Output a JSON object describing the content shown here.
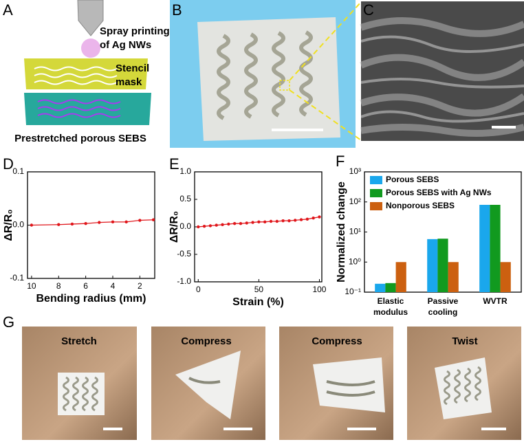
{
  "panel_labels": [
    "A",
    "B",
    "C",
    "D",
    "E",
    "F",
    "G"
  ],
  "diagram": {
    "spray_lines": [
      "Spray printing",
      "of Ag NWs"
    ],
    "stencil_lines": [
      "Stencil",
      "mask"
    ],
    "base": "Prestretched porous SEBS"
  },
  "photos": [
    "Stretch",
    "Compress",
    "Compress",
    "Twist"
  ],
  "chart_data": [
    {
      "type": "line",
      "xlabel": "Bending radius (mm)",
      "ylabel": "ΔR/R₀",
      "x": [
        10,
        8,
        7,
        6,
        5,
        4,
        3,
        2,
        1
      ],
      "series": [
        {
          "color": "#e0161b",
          "values": [
            0,
            0.001,
            0.002,
            0.003,
            0.005,
            0.006,
            0.006,
            0.009,
            0.01
          ]
        }
      ],
      "xlim": [
        10.3,
        0.9
      ],
      "ylim": [
        -0.1,
        0.1
      ],
      "xticks": [
        10,
        8,
        6,
        4,
        2
      ],
      "yticks": [
        -0.1,
        {
          "value": 0,
          "label": "0.0"
        },
        0.1
      ]
    },
    {
      "type": "line",
      "xlabel": "Strain (%)",
      "ylabel": "ΔR/R₀",
      "x": [
        0,
        5,
        10,
        15,
        20,
        25,
        30,
        35,
        40,
        45,
        50,
        55,
        60,
        65,
        70,
        75,
        80,
        85,
        90,
        95,
        100
      ],
      "series": [
        {
          "color": "#e0161b",
          "values": [
            0,
            0.01,
            0.02,
            0.03,
            0.04,
            0.05,
            0.06,
            0.06,
            0.07,
            0.08,
            0.09,
            0.09,
            0.1,
            0.1,
            0.11,
            0.11,
            0.12,
            0.13,
            0.14,
            0.16,
            0.18
          ]
        }
      ],
      "xlim": [
        -3,
        102
      ],
      "ylim": [
        -1,
        1
      ],
      "xticks": [
        0,
        50,
        100
      ],
      "yticks": [
        {
          "value": -1,
          "label": "-1.0"
        },
        -0.5,
        {
          "value": 0,
          "label": "0.0"
        },
        0.5,
        {
          "value": 1,
          "label": "1.0"
        }
      ]
    },
    {
      "type": "bar",
      "ylabel": "Normalized change",
      "log_scale": true,
      "legend": "upper left",
      "categories": [
        "Elastic modulus",
        "Passive cooling",
        "WVTR"
      ],
      "series": [
        {
          "name": "Porous SEBS",
          "color": "#1aa7ec",
          "values": [
            0.19,
            5.8,
            80
          ]
        },
        {
          "name": "Porous SEBS with Ag NWs",
          "color": "#119a1f",
          "values": [
            0.2,
            6,
            80
          ]
        },
        {
          "name": "Nonporous SEBS",
          "color": "#cc6010",
          "values": [
            1,
            1,
            1
          ]
        }
      ],
      "ylim": [
        0.1,
        1000
      ],
      "yticks": [
        {
          "value": 0.1,
          "label": "10⁻¹"
        },
        {
          "value": 1,
          "label": "10⁰"
        },
        {
          "value": 10,
          "label": "10¹"
        },
        {
          "value": 100,
          "label": "10²"
        },
        {
          "value": 1000,
          "label": "10³"
        }
      ]
    }
  ]
}
